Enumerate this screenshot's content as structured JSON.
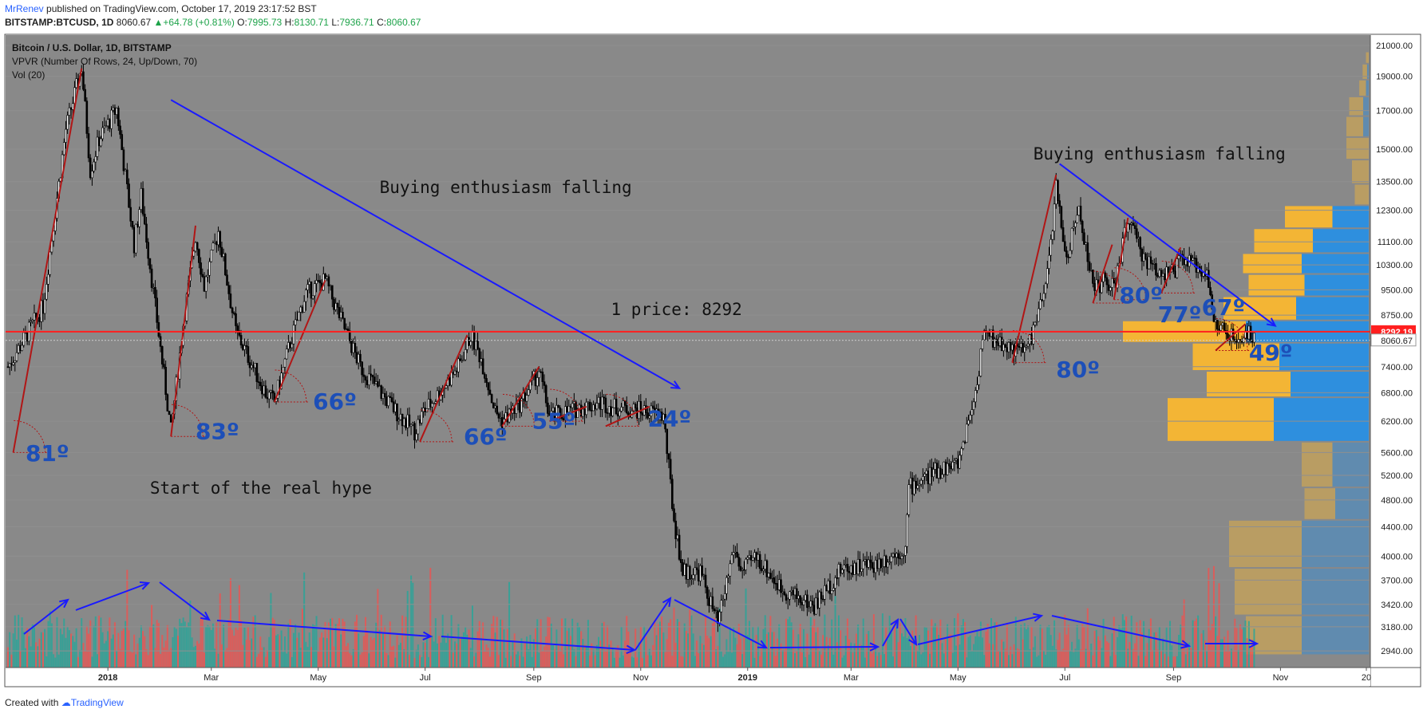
{
  "header": {
    "author": "MrRenev",
    "published": "published on TradingView.com, October 17, 2019 23:17:52 BST",
    "symbol": "BITSTAMP:BTCUSD, 1D",
    "last": "8060.67",
    "change": "+64.78 (+0.81%)",
    "open_label": "O:",
    "open": "7995.73",
    "high_label": "H:",
    "high": "8130.71",
    "low_label": "L:",
    "low": "7936.71",
    "close_label": "C:",
    "close": "8060.67"
  },
  "legend": {
    "title": "Bitcoin / U.S. Dollar, 1D, BITSTAMP",
    "indicator": "VPVR (Number Of Rows, 24, Up/Down, 70)",
    "volume": "Vol (20)"
  },
  "footer": {
    "created": "Created with",
    "brand": "TradingView"
  },
  "colors": {
    "background": "#898989",
    "candle": "#000000",
    "volume_up": "#26a69a",
    "volume_down": "#ef5350",
    "vp_up": "#f3b535",
    "vp_down": "#2e8fde",
    "hline": "#ff1f1f",
    "annotation_blue": "#1d4fb8",
    "arrow": "#1a1aff",
    "trend": "#b11616"
  },
  "chart_data": {
    "type": "candlestick",
    "y_axis": {
      "scale": "log",
      "range": [
        2800,
        21500
      ],
      "ticks": [
        "21000.00",
        "19000.00",
        "17000.00",
        "15000.00",
        "13500.00",
        "12300.00",
        "11100.00",
        "10300.00",
        "9500.00",
        "8750.00",
        "8060.67",
        "7400.00",
        "6800.00",
        "6200.00",
        "5600.00",
        "5200.00",
        "4800.00",
        "4400.00",
        "4000.00",
        "3700.00",
        "3420.00",
        "3180.00",
        "2940.00"
      ]
    },
    "x_axis": {
      "range": [
        "2017-11-05",
        "2019-12-20"
      ],
      "ticks": [
        [
          "2018-01-01",
          "2018"
        ],
        [
          "2018-03-01",
          "Mar"
        ],
        [
          "2018-05-01",
          "May"
        ],
        [
          "2018-07-01",
          "Jul"
        ],
        [
          "2018-09-01",
          "Sep"
        ],
        [
          "2018-11-01",
          "Nov"
        ],
        [
          "2019-01-01",
          "2019"
        ],
        [
          "2019-03-01",
          "Mar"
        ],
        [
          "2019-05-01",
          "May"
        ],
        [
          "2019-07-01",
          "Jul"
        ],
        [
          "2019-09-01",
          "Sep"
        ],
        [
          "2019-11-01",
          "Nov"
        ],
        [
          "2019-12-20",
          "20"
        ]
      ]
    },
    "price_path": [
      [
        "2017-11-05",
        7400
      ],
      [
        "2017-11-25",
        9000
      ],
      [
        "2017-12-08",
        16000
      ],
      [
        "2017-12-17",
        19600
      ],
      [
        "2017-12-22",
        14000
      ],
      [
        "2017-12-27",
        15500
      ],
      [
        "2018-01-06",
        17100
      ],
      [
        "2018-01-16",
        11000
      ],
      [
        "2018-01-20",
        12900
      ],
      [
        "2018-02-06",
        6000
      ],
      [
        "2018-02-13",
        8500
      ],
      [
        "2018-02-20",
        11300
      ],
      [
        "2018-02-25",
        9600
      ],
      [
        "2018-03-05",
        11500
      ],
      [
        "2018-03-15",
        8300
      ],
      [
        "2018-04-01",
        6800
      ],
      [
        "2018-04-06",
        6600
      ],
      [
        "2018-04-15",
        8000
      ],
      [
        "2018-04-24",
        9400
      ],
      [
        "2018-05-05",
        9800
      ],
      [
        "2018-05-10",
        9100
      ],
      [
        "2018-05-25",
        7400
      ],
      [
        "2018-06-12",
        6500
      ],
      [
        "2018-06-25",
        6000
      ],
      [
        "2018-06-30",
        6400
      ],
      [
        "2018-07-05",
        6600
      ],
      [
        "2018-07-20",
        7400
      ],
      [
        "2018-07-27",
        8200
      ],
      [
        "2018-08-02",
        7600
      ],
      [
        "2018-08-10",
        6400
      ],
      [
        "2018-08-14",
        6200
      ],
      [
        "2018-08-25",
        6600
      ],
      [
        "2018-09-04",
        7300
      ],
      [
        "2018-09-10",
        6300
      ],
      [
        "2018-09-20",
        6400
      ],
      [
        "2018-10-10",
        6600
      ],
      [
        "2018-10-15",
        6500
      ],
      [
        "2018-11-05",
        6400
      ],
      [
        "2018-11-14",
        6300
      ],
      [
        "2018-11-20",
        4500
      ],
      [
        "2018-11-25",
        3800
      ],
      [
        "2018-12-05",
        3800
      ],
      [
        "2018-12-15",
        3200
      ],
      [
        "2018-12-24",
        4100
      ],
      [
        "2018-12-29",
        3800
      ],
      [
        "2019-01-06",
        4000
      ],
      [
        "2019-01-20",
        3600
      ],
      [
        "2019-02-08",
        3400
      ],
      [
        "2019-02-24",
        3850
      ],
      [
        "2019-03-15",
        3900
      ],
      [
        "2019-04-01",
        4100
      ],
      [
        "2019-04-03",
        5000
      ],
      [
        "2019-04-20",
        5300
      ],
      [
        "2019-05-01",
        5400
      ],
      [
        "2019-05-12",
        7000
      ],
      [
        "2019-05-15",
        8200
      ],
      [
        "2019-05-25",
        8000
      ],
      [
        "2019-06-05",
        7800
      ],
      [
        "2019-06-10",
        7900
      ],
      [
        "2019-06-20",
        9500
      ],
      [
        "2019-06-26",
        13200
      ],
      [
        "2019-07-02",
        10500
      ],
      [
        "2019-07-09",
        12400
      ],
      [
        "2019-07-17",
        9600
      ],
      [
        "2019-07-25",
        9800
      ],
      [
        "2019-07-29",
        9500
      ],
      [
        "2019-08-06",
        12000
      ],
      [
        "2019-08-13",
        10800
      ],
      [
        "2019-08-20",
        10200
      ],
      [
        "2019-09-01",
        10000
      ],
      [
        "2019-09-05",
        10500
      ],
      [
        "2019-09-12",
        10300
      ],
      [
        "2019-09-20",
        10100
      ],
      [
        "2019-09-24",
        8500
      ],
      [
        "2019-10-01",
        8300
      ],
      [
        "2019-10-08",
        7900
      ],
      [
        "2019-10-12",
        8300
      ],
      [
        "2019-10-17",
        8060.67
      ]
    ],
    "horizontal_line": {
      "value": 8292.19,
      "label": "8292.19"
    },
    "last_price": {
      "value": 8060.67,
      "label": "8060.67"
    },
    "volume_profile": [
      {
        "price_low": 2900,
        "price_high": 3300,
        "up": 1.0,
        "down": 1.2
      },
      {
        "price_low": 3300,
        "price_high": 3850,
        "up": 1.2,
        "down": 1.2
      },
      {
        "price_low": 3850,
        "price_high": 4500,
        "up": 1.3,
        "down": 1.2
      },
      {
        "price_low": 4500,
        "price_high": 5000,
        "up": 0.55,
        "down": 0.6
      },
      {
        "price_low": 5000,
        "price_high": 5800,
        "up": 0.55,
        "down": 0.65
      },
      {
        "price_low": 5800,
        "price_high": 6700,
        "up": 1.9,
        "down": 1.7
      },
      {
        "price_low": 6700,
        "price_high": 7300,
        "up": 1.5,
        "down": 1.4
      },
      {
        "price_low": 7300,
        "price_high": 8000,
        "up": 1.55,
        "down": 1.6
      },
      {
        "price_low": 8000,
        "price_high": 8600,
        "up": 2.2,
        "down": 2.2
      },
      {
        "price_low": 8600,
        "price_high": 9300,
        "up": 1.3,
        "down": 1.3
      },
      {
        "price_low": 9300,
        "price_high": 10000,
        "up": 1.0,
        "down": 1.15
      },
      {
        "price_low": 10000,
        "price_high": 10700,
        "up": 1.05,
        "down": 1.2
      },
      {
        "price_low": 10700,
        "price_high": 11600,
        "up": 1.05,
        "down": 1.0
      },
      {
        "price_low": 11600,
        "price_high": 12500,
        "up": 0.85,
        "down": 0.65
      },
      {
        "price_low": 12500,
        "price_high": 13400,
        "up": 0.25,
        "down": 0.0
      },
      {
        "price_low": 13400,
        "price_high": 14500,
        "up": 0.3,
        "down": 0.0
      },
      {
        "price_low": 14500,
        "price_high": 15600,
        "up": 0.4,
        "down": 0.0
      },
      {
        "price_low": 15600,
        "price_high": 16700,
        "up": 0.3,
        "down": 0.1
      },
      {
        "price_low": 16700,
        "price_high": 17800,
        "up": 0.25,
        "down": 0.1
      },
      {
        "price_low": 17800,
        "price_high": 18800,
        "up": 0.12,
        "down": 0.05
      },
      {
        "price_low": 18800,
        "price_high": 19800,
        "up": 0.08,
        "down": 0.03
      },
      {
        "price_low": 19800,
        "price_high": 20600,
        "up": 0.05,
        "down": 0.0
      }
    ],
    "trendlines": [
      {
        "x1": "2017-11-08",
        "y1": 5600,
        "x2": "2017-12-17",
        "y2": 19500,
        "role": "steep"
      },
      {
        "x1": "2018-02-06",
        "y1": 5900,
        "x2": "2018-02-20",
        "y2": 11700,
        "role": "steep"
      },
      {
        "x1": "2018-04-06",
        "y1": 6600,
        "x2": "2018-05-05",
        "y2": 9800,
        "role": "steep"
      },
      {
        "x1": "2018-06-28",
        "y1": 5800,
        "x2": "2018-07-25",
        "y2": 8200,
        "role": "steep"
      },
      {
        "x1": "2018-08-14",
        "y1": 6100,
        "x2": "2018-09-04",
        "y2": 7400,
        "role": "steep"
      },
      {
        "x1": "2018-09-10",
        "y1": 6200,
        "x2": "2018-10-01",
        "y2": 6500,
        "role": "steep"
      },
      {
        "x1": "2018-10-12",
        "y1": 6100,
        "x2": "2018-11-06",
        "y2": 6500,
        "role": "steep"
      },
      {
        "x1": "2019-06-01",
        "y1": 7500,
        "x2": "2019-06-26",
        "y2": 13800,
        "role": "steep"
      },
      {
        "x1": "2019-07-17",
        "y1": 9100,
        "x2": "2019-07-28",
        "y2": 11000,
        "role": "steep"
      },
      {
        "x1": "2019-07-29",
        "y1": 9200,
        "x2": "2019-08-06",
        "y2": 12000,
        "role": "steep"
      },
      {
        "x1": "2019-08-25",
        "y1": 9400,
        "x2": "2019-09-05",
        "y2": 10900,
        "role": "steep"
      },
      {
        "x1": "2019-09-25",
        "y1": 7800,
        "x2": "2019-10-12",
        "y2": 8500,
        "role": "steep"
      }
    ],
    "angle_labels": [
      {
        "text": "81º",
        "x": "2017-11-15",
        "y": 5450
      },
      {
        "text": "83º",
        "x": "2018-02-20",
        "y": 5850
      },
      {
        "text": "66º",
        "x": "2018-04-28",
        "y": 6450
      },
      {
        "text": "66º",
        "x": "2018-07-23",
        "y": 5750
      },
      {
        "text": "55º",
        "x": "2018-08-31",
        "y": 6050
      },
      {
        "text": "24º",
        "x": "2018-11-05",
        "y": 6100
      },
      {
        "text": "80º",
        "x": "2019-06-26",
        "y": 7150
      },
      {
        "text": "80º",
        "x": "2019-08-01",
        "y": 9100
      },
      {
        "text": "77º",
        "x": "2019-08-23",
        "y": 8550
      },
      {
        "text": "67º",
        "x": "2019-09-17",
        "y": 8750
      },
      {
        "text": "49º",
        "x": "2019-10-14",
        "y": 7550
      }
    ],
    "text_annotations": [
      {
        "text": "Buying enthusiasm falling",
        "x": "2018-06-05",
        "y": 13000
      },
      {
        "text": "Buying enthusiasm falling",
        "x": "2019-06-13",
        "y": 14500
      },
      {
        "text": "1 price: 8292",
        "x": "2018-10-15",
        "y": 8750
      },
      {
        "text": "Start of the real hype",
        "x": "2018-01-25",
        "y": 4900
      }
    ],
    "big_arrows": [
      {
        "x1": "2018-02-06",
        "y1": 17600,
        "x2": "2018-11-23",
        "y2": 6900
      },
      {
        "x1": "2019-06-28",
        "y1": 14300,
        "x2": "2019-10-29",
        "y2": 8450
      }
    ]
  }
}
